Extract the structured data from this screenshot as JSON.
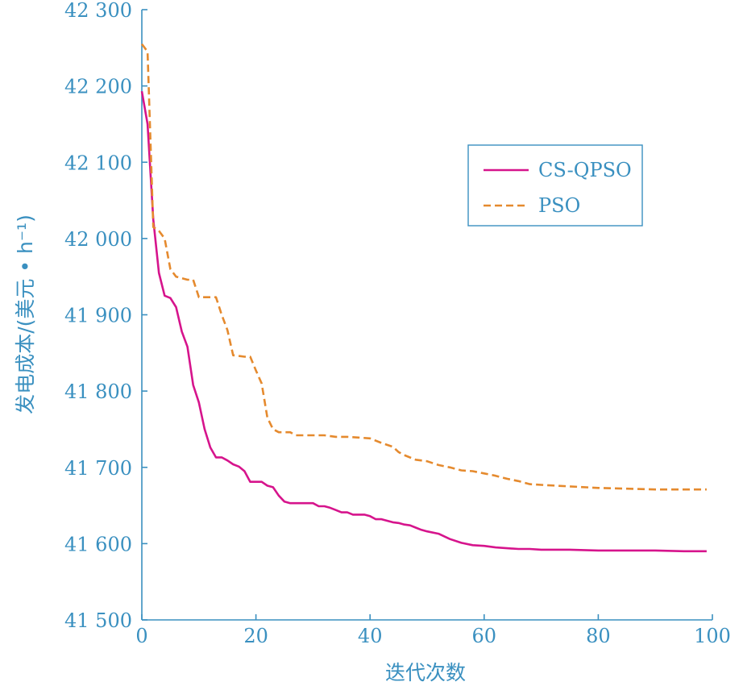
{
  "chart_data": {
    "type": "line",
    "title": "",
    "xlabel": "迭代次数",
    "ylabel": "发电成本/(美元 • h⁻¹)",
    "xlim": [
      0,
      100
    ],
    "ylim": [
      41500,
      42300
    ],
    "xticks": [
      0,
      20,
      40,
      60,
      80,
      100
    ],
    "xtick_labels": [
      "0",
      "20",
      "40",
      "60",
      "80",
      "100"
    ],
    "yticks": [
      41500,
      41600,
      41700,
      41800,
      41900,
      42000,
      42100,
      42200,
      42300
    ],
    "ytick_labels": [
      "41 500",
      "41 600",
      "41 700",
      "41 800",
      "41 900",
      "42 000",
      "42 100",
      "42 200",
      "42 300"
    ],
    "grid": false,
    "legend_position": "upper-right",
    "series": [
      {
        "name": "CS-QPSO",
        "style": "solid",
        "color": "#d6148c",
        "x": [
          0,
          1,
          2,
          3,
          4,
          5,
          6,
          7,
          8,
          9,
          10,
          11,
          12,
          13,
          14,
          15,
          16,
          17,
          18,
          19,
          20,
          21,
          22,
          23,
          24,
          25,
          26,
          27,
          28,
          29,
          30,
          31,
          32,
          33,
          34,
          35,
          36,
          37,
          38,
          39,
          40,
          41,
          42,
          43,
          44,
          45,
          46,
          47,
          48,
          49,
          50,
          52,
          54,
          56,
          58,
          60,
          62,
          64,
          66,
          68,
          70,
          75,
          80,
          85,
          90,
          95,
          99
        ],
        "y": [
          42193,
          42150,
          42025,
          41955,
          41925,
          41922,
          41910,
          41878,
          41858,
          41808,
          41785,
          41750,
          41726,
          41713,
          41713,
          41709,
          41704,
          41701,
          41695,
          41681,
          41681,
          41681,
          41676,
          41674,
          41663,
          41655,
          41653,
          41653,
          41653,
          41653,
          41653,
          41649,
          41649,
          41647,
          41644,
          41641,
          41641,
          41638,
          41638,
          41638,
          41636,
          41632,
          41632,
          41630,
          41628,
          41627,
          41625,
          41624,
          41621,
          41618,
          41616,
          41613,
          41606,
          41601,
          41598,
          41597,
          41595,
          41594,
          41593,
          41593,
          41592,
          41592,
          41591,
          41591,
          41591,
          41590,
          41590
        ]
      },
      {
        "name": "PSO",
        "style": "dashed",
        "color": "#e58a2e",
        "x": [
          0,
          1,
          2,
          3,
          4,
          5,
          6,
          7,
          8,
          9,
          10,
          11,
          12,
          13,
          14,
          15,
          16,
          17,
          18,
          19,
          20,
          21,
          22,
          23,
          24,
          25,
          26,
          27,
          28,
          29,
          30,
          32,
          34,
          36,
          38,
          40,
          42,
          44,
          45,
          46,
          48,
          50,
          52,
          54,
          56,
          58,
          60,
          62,
          64,
          66,
          68,
          70,
          75,
          80,
          85,
          90,
          95,
          99
        ],
        "y": [
          42255,
          42245,
          42015,
          42010,
          42000,
          41960,
          41950,
          41948,
          41946,
          41946,
          41923,
          41923,
          41923,
          41923,
          41900,
          41880,
          41847,
          41846,
          41845,
          41845,
          41827,
          41810,
          41765,
          41750,
          41746,
          41746,
          41746,
          41742,
          41742,
          41742,
          41742,
          41742,
          41740,
          41740,
          41739,
          41738,
          41732,
          41727,
          41720,
          41716,
          41710,
          41708,
          41703,
          41700,
          41696,
          41695,
          41692,
          41689,
          41685,
          41682,
          41678,
          41677,
          41675,
          41673,
          41672,
          41671,
          41671,
          41671
        ]
      }
    ]
  }
}
